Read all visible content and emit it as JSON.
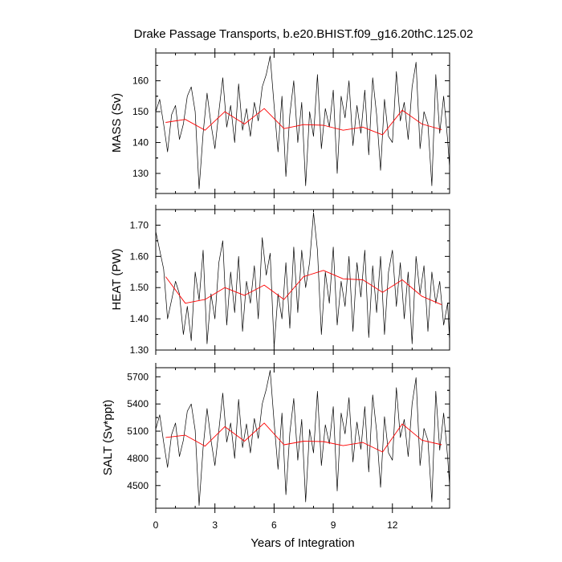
{
  "title": "Drake Passage Transports, b.e20.BHIST.f09_g16.20thC.125.02",
  "colors": {
    "monthly": "#000000",
    "annual_mean": "#ff0000",
    "frame": "#000000"
  },
  "chart_data": [
    {
      "type": "line",
      "panel": "mass",
      "ylabel": "MASS (Sv)",
      "xlabel": "",
      "xlim": [
        0,
        14.9
      ],
      "ylim": [
        123.5,
        169
      ],
      "yticks": [
        130,
        140,
        150,
        160
      ],
      "ytick_labels": [
        "130",
        "140",
        "150",
        "160"
      ],
      "xticks": [
        0,
        3,
        6,
        9,
        12
      ],
      "xtick_labels": [],
      "series": [
        {
          "style": "monthly",
          "x": [
            0.0,
            0.2,
            0.4,
            0.6,
            0.8,
            1.0,
            1.2,
            1.4,
            1.6,
            1.8,
            2.0,
            2.2,
            2.4,
            2.6,
            2.8,
            3.0,
            3.2,
            3.4,
            3.6,
            3.8,
            4.0,
            4.2,
            4.4,
            4.6,
            4.8,
            5.0,
            5.2,
            5.4,
            5.6,
            5.8,
            6.0,
            6.2,
            6.4,
            6.6,
            6.8,
            7.0,
            7.2,
            7.4,
            7.6,
            7.8,
            8.0,
            8.2,
            8.4,
            8.6,
            8.8,
            9.0,
            9.2,
            9.4,
            9.6,
            9.8,
            10.0,
            10.2,
            10.4,
            10.6,
            10.8,
            11.0,
            11.2,
            11.4,
            11.6,
            11.8,
            12.0,
            12.2,
            12.4,
            12.6,
            12.8,
            13.0,
            13.2,
            13.4,
            13.6,
            13.8,
            14.0,
            14.2,
            14.4,
            14.6,
            14.8,
            14.9
          ],
          "y": [
            150,
            154,
            146,
            137,
            149,
            152,
            141,
            146,
            155,
            158,
            150,
            125,
            143,
            156,
            146,
            138,
            150,
            161,
            145,
            152,
            140,
            159,
            144,
            151,
            142,
            153,
            147,
            158,
            162,
            168,
            152,
            137,
            155,
            129,
            149,
            160,
            140,
            153,
            126,
            150,
            142,
            162,
            138,
            151,
            145,
            157,
            130,
            155,
            148,
            160,
            139,
            152,
            143,
            157,
            136,
            161,
            149,
            131,
            154,
            142,
            140,
            163,
            147,
            153,
            141,
            158,
            166,
            138,
            150,
            146,
            126,
            162,
            143,
            155,
            141,
            132
          ]
        },
        {
          "style": "annual_mean",
          "x": [
            0.5,
            1.5,
            2.5,
            3.5,
            4.5,
            5.5,
            6.5,
            7.5,
            8.5,
            9.5,
            10.5,
            11.5,
            12.5,
            13.5,
            14.5
          ],
          "y": [
            146.5,
            147.5,
            144,
            150,
            146,
            151,
            144.5,
            145.8,
            145.6,
            144,
            145,
            142.5,
            150.5,
            146,
            144.2
          ]
        }
      ]
    },
    {
      "type": "line",
      "panel": "heat",
      "ylabel": "HEAT (PW)",
      "xlabel": "",
      "xlim": [
        0,
        14.9
      ],
      "ylim": [
        1.3,
        1.75
      ],
      "yticks": [
        1.3,
        1.4,
        1.5,
        1.6,
        1.7
      ],
      "ytick_labels": [
        "1.30",
        "1.40",
        "1.50",
        "1.60",
        "1.70"
      ],
      "xticks": [
        0,
        3,
        6,
        9,
        12
      ],
      "xtick_labels": [],
      "series": [
        {
          "style": "monthly",
          "x": [
            0.0,
            0.2,
            0.4,
            0.6,
            0.8,
            1.0,
            1.2,
            1.4,
            1.6,
            1.8,
            2.0,
            2.2,
            2.4,
            2.6,
            2.8,
            3.0,
            3.2,
            3.4,
            3.6,
            3.8,
            4.0,
            4.2,
            4.4,
            4.6,
            4.8,
            5.0,
            5.2,
            5.4,
            5.6,
            5.8,
            6.0,
            6.2,
            6.4,
            6.6,
            6.8,
            7.0,
            7.2,
            7.4,
            7.6,
            7.8,
            8.0,
            8.2,
            8.4,
            8.6,
            8.8,
            9.0,
            9.2,
            9.4,
            9.6,
            9.8,
            10.0,
            10.2,
            10.4,
            10.6,
            10.8,
            11.0,
            11.2,
            11.4,
            11.6,
            11.8,
            12.0,
            12.2,
            12.4,
            12.6,
            12.8,
            13.0,
            13.2,
            13.4,
            13.6,
            13.8,
            14.0,
            14.2,
            14.4,
            14.6,
            14.8,
            14.9
          ],
          "y": [
            1.68,
            1.62,
            1.56,
            1.4,
            1.46,
            1.52,
            1.48,
            1.35,
            1.44,
            1.33,
            1.55,
            1.46,
            1.62,
            1.32,
            1.48,
            1.4,
            1.58,
            1.65,
            1.38,
            1.55,
            1.42,
            1.6,
            1.36,
            1.52,
            1.45,
            1.57,
            1.4,
            1.66,
            1.54,
            1.61,
            1.31,
            1.48,
            1.4,
            1.58,
            1.37,
            1.63,
            1.42,
            1.62,
            1.5,
            1.58,
            1.74,
            1.62,
            1.35,
            1.55,
            1.45,
            1.63,
            1.38,
            1.52,
            1.44,
            1.6,
            1.36,
            1.58,
            1.47,
            1.62,
            1.34,
            1.57,
            1.42,
            1.6,
            1.35,
            1.55,
            1.62,
            1.44,
            1.58,
            1.4,
            1.55,
            1.32,
            1.6,
            1.48,
            1.57,
            1.36,
            1.55,
            1.45,
            1.52,
            1.38,
            1.45,
            1.33
          ]
        },
        {
          "style": "annual_mean",
          "x": [
            0.5,
            1.5,
            2.5,
            3.5,
            4.5,
            5.5,
            6.5,
            7.5,
            8.5,
            9.5,
            10.5,
            11.5,
            12.5,
            13.5,
            14.5
          ],
          "y": [
            1.535,
            1.45,
            1.462,
            1.5,
            1.475,
            1.508,
            1.462,
            1.535,
            1.555,
            1.528,
            1.525,
            1.485,
            1.525,
            1.472,
            1.445
          ]
        }
      ]
    },
    {
      "type": "line",
      "panel": "salt",
      "ylabel": "SALT (Sv*ppt)",
      "xlabel": "Years of Integration",
      "xlim": [
        0,
        14.9
      ],
      "ylim": [
        4250,
        5800
      ],
      "yticks": [
        4500,
        4800,
        5100,
        5400,
        5700
      ],
      "ytick_labels": [
        "4500",
        "4800",
        "5100",
        "5400",
        "5700"
      ],
      "xticks": [
        0,
        3,
        6,
        9,
        12
      ],
      "xtick_labels": [
        "0",
        "3",
        "6",
        "9",
        "12"
      ],
      "series": [
        {
          "style": "monthly",
          "x": [
            0.0,
            0.2,
            0.4,
            0.6,
            0.8,
            1.0,
            1.2,
            1.4,
            1.6,
            1.8,
            2.0,
            2.2,
            2.4,
            2.6,
            2.8,
            3.0,
            3.2,
            3.4,
            3.6,
            3.8,
            4.0,
            4.2,
            4.4,
            4.6,
            4.8,
            5.0,
            5.2,
            5.4,
            5.6,
            5.8,
            6.0,
            6.2,
            6.4,
            6.6,
            6.8,
            7.0,
            7.2,
            7.4,
            7.6,
            7.8,
            8.0,
            8.2,
            8.4,
            8.6,
            8.8,
            9.0,
            9.2,
            9.4,
            9.6,
            9.8,
            10.0,
            10.2,
            10.4,
            10.6,
            10.8,
            11.0,
            11.2,
            11.4,
            11.6,
            11.8,
            12.0,
            12.2,
            12.4,
            12.6,
            12.8,
            13.0,
            13.2,
            13.4,
            13.6,
            13.8,
            14.0,
            14.2,
            14.4,
            14.6,
            14.8,
            14.9
          ],
          "y": [
            5120,
            5280,
            4980,
            4700,
            5060,
            5190,
            4820,
            5000,
            5320,
            5400,
            5110,
            4280,
            4920,
            5350,
            5000,
            4720,
            5110,
            5520,
            4980,
            5190,
            4800,
            5450,
            4920,
            5180,
            4860,
            5240,
            5020,
            5400,
            5560,
            5770,
            5200,
            4680,
            5300,
            4400,
            5080,
            5460,
            4780,
            5230,
            4320,
            5120,
            4860,
            5540,
            4720,
            5170,
            4960,
            5370,
            4440,
            5300,
            5070,
            5470,
            4760,
            5200,
            4900,
            5370,
            4650,
            5500,
            5100,
            4480,
            5260,
            4860,
            4780,
            5580,
            5030,
            5230,
            4820,
            5400,
            5690,
            4720,
            5130,
            5000,
            4320,
            5540,
            4890,
            5300,
            4820,
            4500
          ]
        },
        {
          "style": "annual_mean",
          "x": [
            0.5,
            1.5,
            2.5,
            3.5,
            4.5,
            5.5,
            6.5,
            7.5,
            8.5,
            9.5,
            10.5,
            11.5,
            12.5,
            13.5,
            14.5
          ],
          "y": [
            5030,
            5055,
            4935,
            5150,
            4990,
            5190,
            4950,
            4990,
            4985,
            4940,
            4975,
            4870,
            5180,
            5000,
            4950
          ]
        }
      ]
    }
  ]
}
